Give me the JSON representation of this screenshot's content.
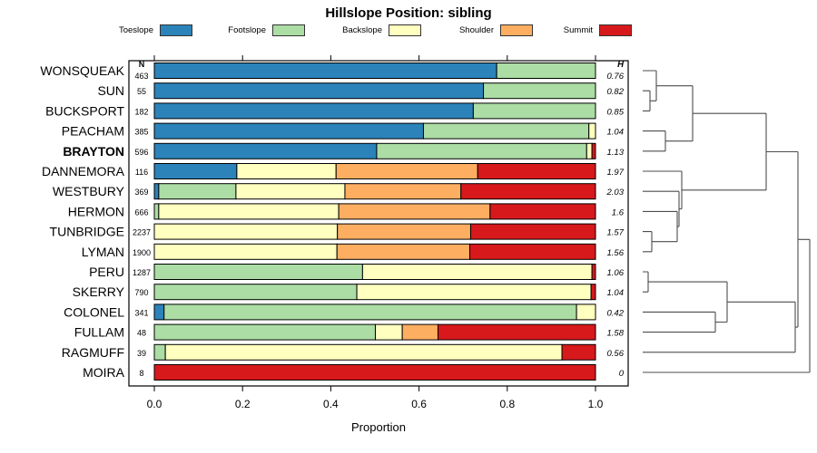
{
  "title": "Hillslope Position: sibling",
  "columns": {
    "n_header": "N",
    "h_header": "H"
  },
  "axis": {
    "label": "Proportion",
    "ticks": [
      "0.0",
      "0.2",
      "0.4",
      "0.6",
      "0.8",
      "1.0"
    ],
    "range": [
      0,
      1
    ]
  },
  "legend": [
    {
      "label": "Toeslope",
      "color": "#2b83ba"
    },
    {
      "label": "Footslope",
      "color": "#abdda4"
    },
    {
      "label": "Backslope",
      "color": "#ffffbf"
    },
    {
      "label": "Shoulder",
      "color": "#fdae61"
    },
    {
      "label": "Summit",
      "color": "#d7191c"
    }
  ],
  "chart_data": {
    "type": "bar",
    "orientation": "horizontal",
    "stacked": true,
    "title": "Hillslope Position: sibling",
    "xlabel": "Proportion",
    "xlim": [
      0,
      1
    ],
    "categories": [
      "Toeslope",
      "Footslope",
      "Backslope",
      "Shoulder",
      "Summit"
    ],
    "colors": {
      "Toeslope": "#2b83ba",
      "Footslope": "#abdda4",
      "Backslope": "#ffffbf",
      "Shoulder": "#fdae61",
      "Summit": "#d7191c"
    },
    "rows": [
      {
        "name": "WONSQUEAK",
        "n": "463",
        "h": "0.76",
        "bold": false,
        "segments": [
          {
            "category": "Toeslope",
            "value": 0.776
          },
          {
            "category": "Footslope",
            "value": 0.224
          }
        ]
      },
      {
        "name": "SUN",
        "n": "55",
        "h": "0.82",
        "bold": false,
        "segments": [
          {
            "category": "Toeslope",
            "value": 0.746
          },
          {
            "category": "Footslope",
            "value": 0.254
          }
        ]
      },
      {
        "name": "BUCKSPORT",
        "n": "182",
        "h": "0.85",
        "bold": false,
        "segments": [
          {
            "category": "Toeslope",
            "value": 0.723
          },
          {
            "category": "Footslope",
            "value": 0.277
          }
        ]
      },
      {
        "name": "PEACHAM",
        "n": "385",
        "h": "1.04",
        "bold": false,
        "segments": [
          {
            "category": "Toeslope",
            "value": 0.61
          },
          {
            "category": "Footslope",
            "value": 0.375
          },
          {
            "category": "Backslope",
            "value": 0.015
          }
        ]
      },
      {
        "name": "BRAYTON",
        "n": "596",
        "h": "1.13",
        "bold": true,
        "segments": [
          {
            "category": "Toeslope",
            "value": 0.504
          },
          {
            "category": "Footslope",
            "value": 0.476
          },
          {
            "category": "Backslope",
            "value": 0.012
          },
          {
            "category": "Summit",
            "value": 0.008
          }
        ]
      },
      {
        "name": "DANNEMORA",
        "n": "116",
        "h": "1.97",
        "bold": false,
        "segments": [
          {
            "category": "Toeslope",
            "value": 0.187
          },
          {
            "category": "Backslope",
            "value": 0.225
          },
          {
            "category": "Shoulder",
            "value": 0.321
          },
          {
            "category": "Summit",
            "value": 0.267
          }
        ]
      },
      {
        "name": "WESTBURY",
        "n": "369",
        "h": "2.03",
        "bold": false,
        "segments": [
          {
            "category": "Toeslope",
            "value": 0.01
          },
          {
            "category": "Footslope",
            "value": 0.175
          },
          {
            "category": "Backslope",
            "value": 0.247
          },
          {
            "category": "Shoulder",
            "value": 0.263
          },
          {
            "category": "Summit",
            "value": 0.305
          }
        ]
      },
      {
        "name": "HERMON",
        "n": "666",
        "h": "1.6",
        "bold": false,
        "segments": [
          {
            "category": "Footslope",
            "value": 0.01
          },
          {
            "category": "Backslope",
            "value": 0.408
          },
          {
            "category": "Shoulder",
            "value": 0.343
          },
          {
            "category": "Summit",
            "value": 0.239
          }
        ]
      },
      {
        "name": "TUNBRIDGE",
        "n": "2237",
        "h": "1.57",
        "bold": false,
        "segments": [
          {
            "category": "Backslope",
            "value": 0.415
          },
          {
            "category": "Shoulder",
            "value": 0.302
          },
          {
            "category": "Summit",
            "value": 0.283
          }
        ]
      },
      {
        "name": "LYMAN",
        "n": "1900",
        "h": "1.56",
        "bold": false,
        "segments": [
          {
            "category": "Backslope",
            "value": 0.414
          },
          {
            "category": "Shoulder",
            "value": 0.301
          },
          {
            "category": "Summit",
            "value": 0.285
          }
        ]
      },
      {
        "name": "PERU",
        "n": "1287",
        "h": "1.06",
        "bold": false,
        "segments": [
          {
            "category": "Footslope",
            "value": 0.472
          },
          {
            "category": "Backslope",
            "value": 0.52
          },
          {
            "category": "Summit",
            "value": 0.008
          }
        ]
      },
      {
        "name": "SKERRY",
        "n": "790",
        "h": "1.04",
        "bold": false,
        "segments": [
          {
            "category": "Footslope",
            "value": 0.459
          },
          {
            "category": "Backslope",
            "value": 0.531
          },
          {
            "category": "Summit",
            "value": 0.01
          }
        ]
      },
      {
        "name": "COLONEL",
        "n": "341",
        "h": "0.42",
        "bold": false,
        "segments": [
          {
            "category": "Toeslope",
            "value": 0.022
          },
          {
            "category": "Footslope",
            "value": 0.935
          },
          {
            "category": "Backslope",
            "value": 0.043
          }
        ]
      },
      {
        "name": "FULLAM",
        "n": "48",
        "h": "1.58",
        "bold": false,
        "segments": [
          {
            "category": "Footslope",
            "value": 0.501
          },
          {
            "category": "Backslope",
            "value": 0.061
          },
          {
            "category": "Shoulder",
            "value": 0.081
          },
          {
            "category": "Summit",
            "value": 0.357
          }
        ]
      },
      {
        "name": "RAGMUFF",
        "n": "39",
        "h": "0.56",
        "bold": false,
        "segments": [
          {
            "category": "Footslope",
            "value": 0.025
          },
          {
            "category": "Backslope",
            "value": 0.899
          },
          {
            "category": "Summit",
            "value": 0.076
          }
        ]
      },
      {
        "name": "MOIRA",
        "n": "8",
        "h": "0",
        "bold": false,
        "segments": [
          {
            "category": "Summit",
            "value": 1.0
          }
        ]
      }
    ]
  },
  "dendrogram": {
    "line_color": "#4d4d4d",
    "merges": [
      {
        "id": "m1",
        "a": "SUN",
        "b": "BUCKSPORT",
        "x": 716
      },
      {
        "id": "m2",
        "a": "WONSQUEAK",
        "b": "m1",
        "x": 723
      },
      {
        "id": "m3",
        "a": "PEACHAM",
        "b": "BRAYTON",
        "x": 733
      },
      {
        "id": "m4",
        "a": "m2",
        "b": "m3",
        "x": 763
      },
      {
        "id": "m5",
        "a": "TUNBRIDGE",
        "b": "LYMAN",
        "x": 718
      },
      {
        "id": "m6",
        "a": "HERMON",
        "b": "m5",
        "x": 746
      },
      {
        "id": "m7",
        "a": "WESTBURY",
        "b": "m6",
        "x": 748
      },
      {
        "id": "m8",
        "a": "DANNEMORA",
        "b": "m7",
        "x": 751
      },
      {
        "id": "m9",
        "a": "m4",
        "b": "m8",
        "x": 844
      },
      {
        "id": "m10",
        "a": "PERU",
        "b": "SKERRY",
        "x": 714
      },
      {
        "id": "m11",
        "a": "COLONEL",
        "b": "FULLAM",
        "x": 788
      },
      {
        "id": "m12",
        "a": "m10",
        "b": "m11",
        "x": 801
      },
      {
        "id": "m13",
        "a": "m12",
        "b": "RAGMUFF",
        "x": 876
      },
      {
        "id": "m14",
        "a": "m9",
        "b": "m13",
        "x": 879
      },
      {
        "id": "m15",
        "a": "m14",
        "b": "MOIRA",
        "x": 892
      }
    ]
  }
}
